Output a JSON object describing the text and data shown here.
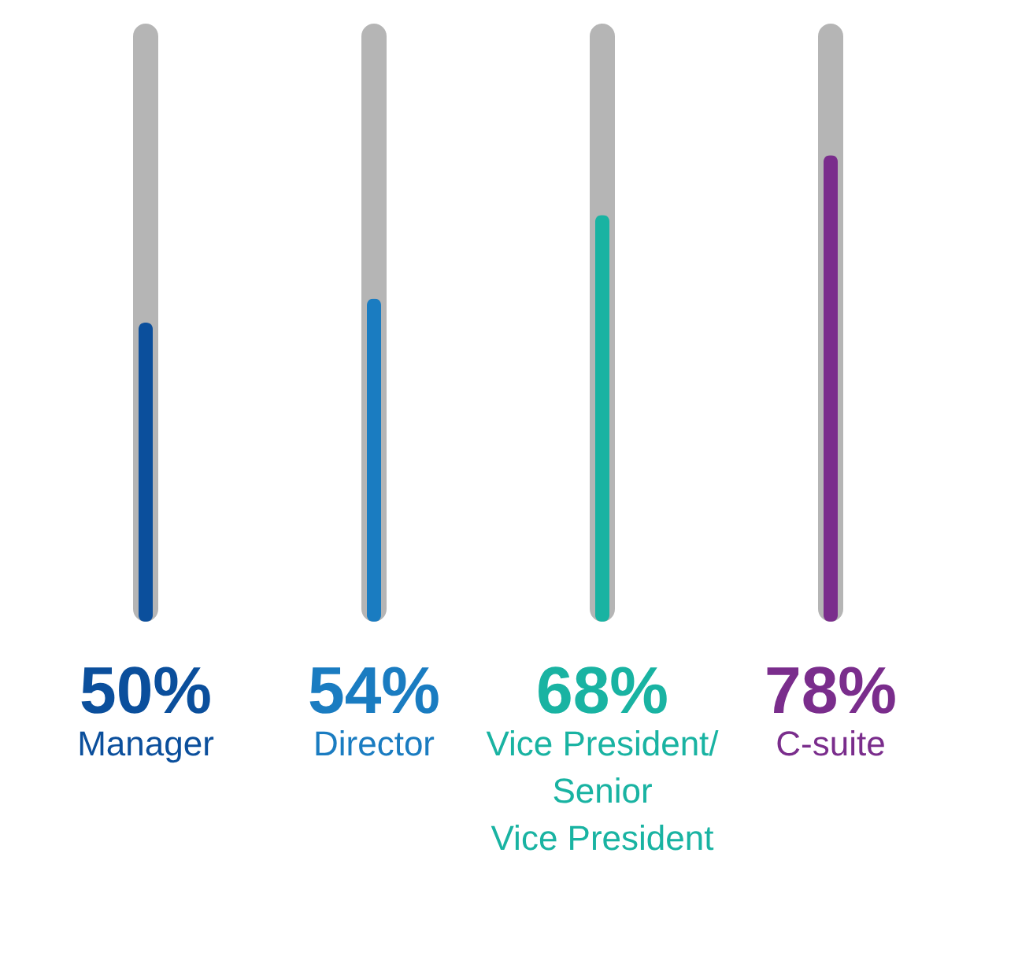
{
  "chart_data": {
    "type": "bar",
    "categories": [
      "Manager",
      "Director",
      "Vice President/\nSenior\nVice President",
      "C-suite"
    ],
    "values": [
      50,
      54,
      68,
      78
    ],
    "value_labels": [
      "50%",
      "54%",
      "68%",
      "78%"
    ],
    "colors": [
      "#0b4f9c",
      "#1a7cc1",
      "#19b3a2",
      "#7a2d8c"
    ],
    "ylim": [
      0,
      100
    ],
    "tick_labels": false
  }
}
